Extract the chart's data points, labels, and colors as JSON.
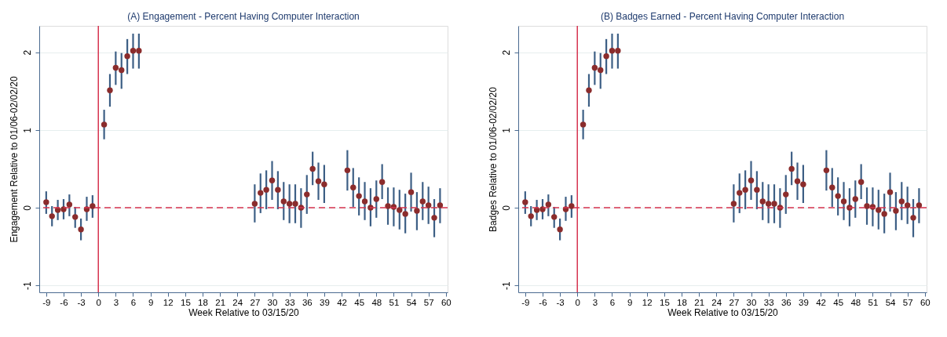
{
  "chart_data": [
    {
      "type": "scatter",
      "title": "(A) Engagement - Percent Having Computer Interaction",
      "xlabel": "Week Relative to 03/15/20",
      "ylabel": "Engagement Relative to 01/06-02/02/20",
      "x": [
        -9,
        -8,
        -7,
        -6,
        -5,
        -4,
        -3,
        -2,
        -1,
        1,
        2,
        3,
        4,
        5,
        6,
        7,
        27,
        28,
        29,
        30,
        31,
        32,
        33,
        34,
        35,
        36,
        37,
        38,
        39,
        43,
        44,
        45,
        46,
        47,
        48,
        49,
        50,
        51,
        52,
        53,
        54,
        55,
        56,
        57,
        58,
        59
      ],
      "series": [
        {
          "color": "#8b2c2c",
          "marker": "circle",
          "values": [
            0.07,
            -0.11,
            -0.03,
            -0.02,
            0.04,
            -0.12,
            -0.28,
            -0.02,
            0.02,
            1.07,
            1.51,
            1.8,
            1.77,
            1.95,
            2.02,
            2.02,
            0.05,
            0.19,
            0.23,
            0.35,
            0.23,
            0.08,
            0.05,
            0.05,
            0.0,
            0.17,
            0.5,
            0.34,
            0.3,
            0.48,
            0.26,
            0.15,
            0.08,
            0.0,
            0.11,
            0.33,
            0.02,
            0.01,
            -0.03,
            -0.08,
            0.2,
            -0.04,
            0.08,
            0.03,
            -0.13,
            0.03
          ],
          "errors": [
            [
              -0.08,
              0.21
            ],
            [
              -0.24,
              0.02
            ],
            [
              -0.16,
              0.1
            ],
            [
              -0.15,
              0.11
            ],
            [
              -0.11,
              0.17
            ],
            [
              -0.26,
              0.01
            ],
            [
              -0.42,
              -0.14
            ],
            [
              -0.17,
              0.14
            ],
            [
              -0.13,
              0.16
            ],
            [
              0.88,
              1.26
            ],
            [
              1.3,
              1.72
            ],
            [
              1.58,
              2.01
            ],
            [
              1.53,
              1.99
            ],
            [
              1.72,
              2.17
            ],
            [
              1.79,
              2.24
            ],
            [
              1.79,
              2.24
            ],
            [
              -0.19,
              0.3
            ],
            [
              -0.07,
              0.44
            ],
            [
              -0.02,
              0.48
            ],
            [
              0.1,
              0.6
            ],
            [
              -0.02,
              0.47
            ],
            [
              -0.16,
              0.33
            ],
            [
              -0.2,
              0.3
            ],
            [
              -0.2,
              0.3
            ],
            [
              -0.26,
              0.25
            ],
            [
              -0.08,
              0.42
            ],
            [
              0.29,
              0.72
            ],
            [
              0.1,
              0.58
            ],
            [
              0.06,
              0.55
            ],
            [
              0.22,
              0.74
            ],
            [
              0.01,
              0.51
            ],
            [
              -0.1,
              0.39
            ],
            [
              -0.16,
              0.33
            ],
            [
              -0.24,
              0.25
            ],
            [
              -0.13,
              0.35
            ],
            [
              0.11,
              0.56
            ],
            [
              -0.22,
              0.26
            ],
            [
              -0.24,
              0.26
            ],
            [
              -0.28,
              0.23
            ],
            [
              -0.33,
              0.18
            ],
            [
              -0.05,
              0.45
            ],
            [
              -0.29,
              0.2
            ],
            [
              -0.16,
              0.33
            ],
            [
              -0.21,
              0.27
            ],
            [
              -0.38,
              0.11
            ],
            [
              -0.2,
              0.25
            ]
          ]
        }
      ],
      "xlim": [
        -10.2,
        60.3
      ],
      "xticks": [
        -9,
        -6,
        -3,
        0,
        3,
        6,
        9,
        12,
        15,
        18,
        21,
        24,
        27,
        30,
        33,
        36,
        39,
        42,
        45,
        48,
        51,
        54,
        57,
        60
      ],
      "ylim": [
        -1.09,
        2.34
      ],
      "yticks": [
        -1,
        0,
        1,
        2
      ],
      "grid": "y",
      "ref_lines": [
        {
          "axis": "x",
          "value": 0,
          "color": "#d6334f",
          "line_style": "solid"
        },
        {
          "axis": "y",
          "value": 0,
          "color": "#d6334f",
          "line_style": "dashed"
        }
      ]
    },
    {
      "type": "scatter",
      "title": "(B) Badges Earned - Percent Having Computer Interaction",
      "xlabel": "Week Relative to 03/15/20",
      "ylabel": "Badges Relative to 01/06-02/02/20",
      "x": [
        -9,
        -8,
        -7,
        -6,
        -5,
        -4,
        -3,
        -2,
        -1,
        1,
        2,
        3,
        4,
        5,
        6,
        7,
        27,
        28,
        29,
        30,
        31,
        32,
        33,
        34,
        35,
        36,
        37,
        38,
        39,
        43,
        44,
        45,
        46,
        47,
        48,
        49,
        50,
        51,
        52,
        53,
        54,
        55,
        56,
        57,
        58,
        59
      ],
      "series": [
        {
          "color": "#8b2c2c",
          "marker": "circle",
          "values": [
            0.07,
            -0.11,
            -0.03,
            -0.02,
            0.04,
            -0.12,
            -0.28,
            -0.02,
            0.02,
            1.07,
            1.51,
            1.8,
            1.77,
            1.95,
            2.02,
            2.02,
            0.05,
            0.19,
            0.23,
            0.35,
            0.23,
            0.08,
            0.05,
            0.05,
            0.0,
            0.17,
            0.5,
            0.34,
            0.3,
            0.48,
            0.26,
            0.15,
            0.08,
            0.0,
            0.11,
            0.33,
            0.02,
            0.01,
            -0.03,
            -0.08,
            0.2,
            -0.04,
            0.08,
            0.03,
            -0.13,
            0.03
          ],
          "errors": [
            [
              -0.08,
              0.21
            ],
            [
              -0.24,
              0.02
            ],
            [
              -0.16,
              0.1
            ],
            [
              -0.15,
              0.11
            ],
            [
              -0.11,
              0.17
            ],
            [
              -0.26,
              0.01
            ],
            [
              -0.42,
              -0.14
            ],
            [
              -0.17,
              0.14
            ],
            [
              -0.13,
              0.16
            ],
            [
              0.88,
              1.26
            ],
            [
              1.3,
              1.72
            ],
            [
              1.58,
              2.01
            ],
            [
              1.53,
              1.99
            ],
            [
              1.72,
              2.17
            ],
            [
              1.79,
              2.24
            ],
            [
              1.79,
              2.24
            ],
            [
              -0.19,
              0.3
            ],
            [
              -0.07,
              0.44
            ],
            [
              -0.02,
              0.48
            ],
            [
              0.1,
              0.6
            ],
            [
              -0.02,
              0.47
            ],
            [
              -0.16,
              0.33
            ],
            [
              -0.2,
              0.3
            ],
            [
              -0.2,
              0.3
            ],
            [
              -0.26,
              0.25
            ],
            [
              -0.08,
              0.42
            ],
            [
              0.29,
              0.72
            ],
            [
              0.1,
              0.58
            ],
            [
              0.06,
              0.55
            ],
            [
              0.22,
              0.74
            ],
            [
              0.01,
              0.51
            ],
            [
              -0.1,
              0.39
            ],
            [
              -0.16,
              0.33
            ],
            [
              -0.24,
              0.25
            ],
            [
              -0.13,
              0.35
            ],
            [
              0.11,
              0.56
            ],
            [
              -0.22,
              0.26
            ],
            [
              -0.24,
              0.26
            ],
            [
              -0.28,
              0.23
            ],
            [
              -0.33,
              0.18
            ],
            [
              -0.05,
              0.45
            ],
            [
              -0.29,
              0.2
            ],
            [
              -0.16,
              0.33
            ],
            [
              -0.21,
              0.27
            ],
            [
              -0.38,
              0.11
            ],
            [
              -0.2,
              0.25
            ]
          ]
        }
      ],
      "xlim": [
        -10.2,
        60.3
      ],
      "xticks": [
        -9,
        -6,
        -3,
        0,
        3,
        6,
        9,
        12,
        15,
        18,
        21,
        24,
        27,
        30,
        33,
        36,
        39,
        42,
        45,
        48,
        51,
        54,
        57,
        60
      ],
      "ylim": [
        -1.09,
        2.34
      ],
      "yticks": [
        -1,
        0,
        1,
        2
      ],
      "grid": "y",
      "ref_lines": [
        {
          "axis": "x",
          "value": 0,
          "color": "#d6334f",
          "line_style": "solid"
        },
        {
          "axis": "y",
          "value": 0,
          "color": "#d6334f",
          "line_style": "dashed"
        }
      ]
    }
  ]
}
